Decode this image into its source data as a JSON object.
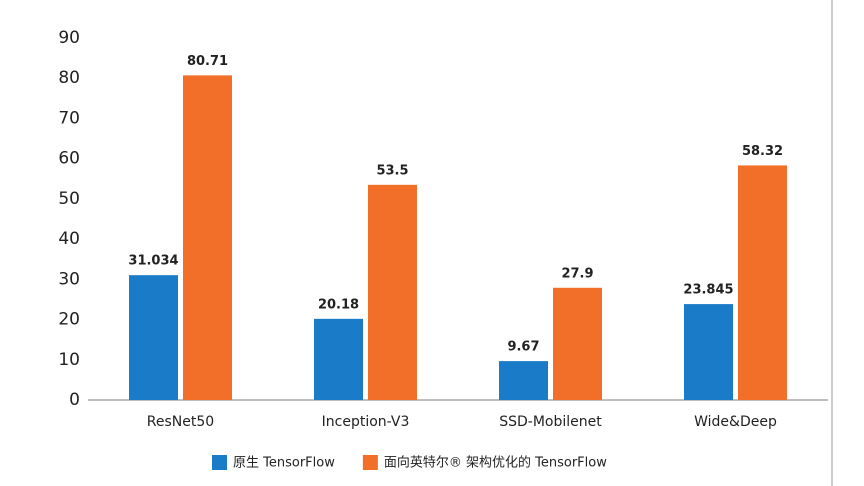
{
  "chart_data": {
    "type": "bar",
    "categories": [
      "ResNet50",
      "Inception-V3",
      "SSD-Mobilenet",
      "Wide&Deep"
    ],
    "series": [
      {
        "name": "原生 TensorFlow",
        "color": "#1a7bc9",
        "values": [
          31.034,
          20.18,
          9.67,
          23.845
        ]
      },
      {
        "name": "面向英特尔® 架构优化的 TensorFlow",
        "color": "#f26f2a",
        "values": [
          80.71,
          53.5,
          27.9,
          58.32
        ]
      }
    ],
    "ylim": [
      0,
      90
    ],
    "yticks": [
      0,
      10,
      20,
      30,
      40,
      50,
      60,
      70,
      80,
      90
    ],
    "grid": false,
    "legend": "bottom"
  }
}
